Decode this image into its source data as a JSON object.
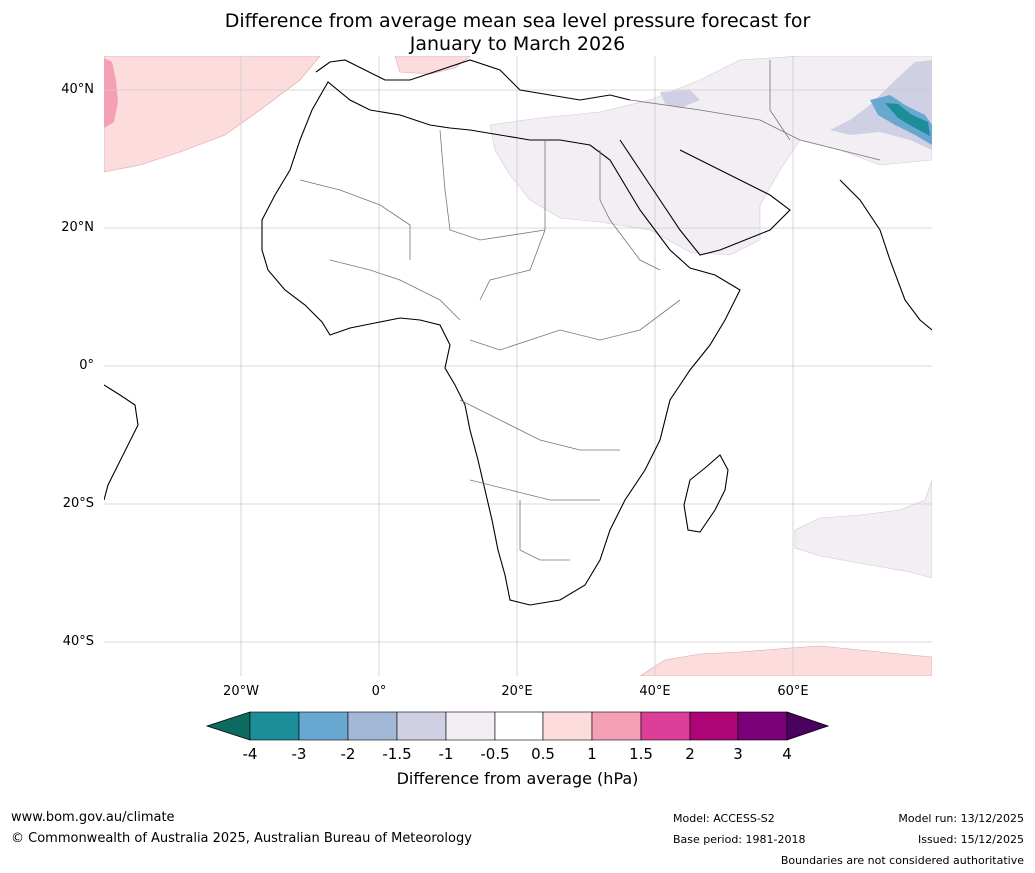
{
  "title_line1": "Difference from average mean sea level pressure forecast for",
  "title_line2": "January to March 2026",
  "lat_labels": [
    "40°N",
    "20°N",
    "0°",
    "20°S",
    "40°S"
  ],
  "lon_labels": [
    "20°W",
    "0°",
    "20°E",
    "40°E",
    "60°E"
  ],
  "colorbar": {
    "ticks": [
      "-4",
      "-3",
      "-2",
      "-1.5",
      "-1",
      "-0.5",
      "0.5",
      "1",
      "1.5",
      "2",
      "3",
      "4"
    ],
    "colors": [
      "#0c6b5e",
      "#1b8e99",
      "#68a8d0",
      "#a3b7d6",
      "#cfd0e4",
      "#f2eef4",
      "#ffffff",
      "#fcdcdc",
      "#f59fb6",
      "#dd3e97",
      "#ad0577",
      "#7a0179",
      "#4b015e"
    ],
    "label": "Difference from average (hPa)"
  },
  "footer": {
    "website": "www.bom.gov.au/climate",
    "copyright": "© Commonwealth of Australia 2025, Australian Bureau of Meteorology",
    "model": "Model: ACCESS-S2",
    "base_period": "Base period: 1981-2018",
    "model_run": "Model run: 13/12/2025",
    "issued": "Issued: 15/12/2025",
    "boundaries": "Boundaries are not considered authoritative"
  }
}
